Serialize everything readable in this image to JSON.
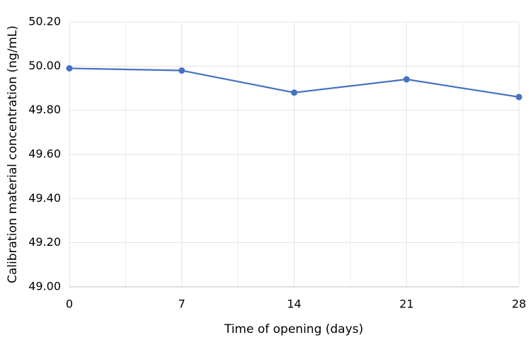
{
  "chart_data": {
    "type": "line",
    "x_label": "Time of opening (days)",
    "y_label": "Calibration material concentration (ng/mL)",
    "x": [
      0,
      7,
      14,
      21,
      28
    ],
    "values": [
      49.99,
      49.98,
      49.88,
      49.94,
      49.86
    ],
    "color": "#4472c4",
    "xlim": [
      0,
      28
    ],
    "xticks": [
      0,
      7,
      14,
      21,
      28
    ],
    "ylim": [
      49,
      50.2
    ],
    "yticks": [
      {
        "value": 49,
        "label": "49.00"
      },
      {
        "value": 49.2,
        "label": "49.20"
      },
      {
        "value": 49.4,
        "label": "49.40"
      },
      {
        "value": 49.6,
        "label": "49.60"
      },
      {
        "value": 49.8,
        "label": "49.80"
      },
      {
        "value": 50,
        "label": "50.00"
      },
      {
        "value": 50.2,
        "label": "50.20"
      }
    ],
    "grid": true
  }
}
